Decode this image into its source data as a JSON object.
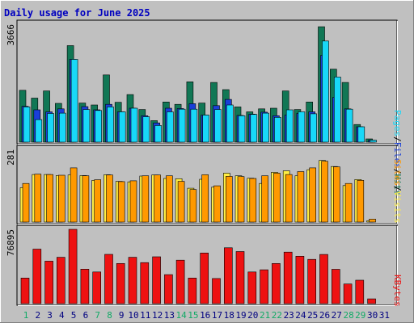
{
  "title": "Daily usage for June 2025",
  "colors": {
    "background": "#c0c0c0",
    "title": "#0000c0",
    "hits": "#117755",
    "files": "#1a3fd8",
    "pages": "#18d8f8",
    "visits": "#ffee44",
    "sites": "#ff9900",
    "kbytes": "#ee1111",
    "weekend_label": "#11aa66",
    "weekday_label": "#000080"
  },
  "chart_data": [
    {
      "type": "bar",
      "title": "Daily usage for June 2025",
      "panel": "hits-files-pages",
      "scale_label": "3666",
      "right_labels": [
        "Pages",
        "Files",
        "Hits"
      ],
      "categories": [
        "1",
        "2",
        "3",
        "4",
        "5",
        "6",
        "7",
        "8",
        "9",
        "10",
        "11",
        "12",
        "13",
        "14",
        "15",
        "16",
        "17",
        "18",
        "19",
        "20",
        "21",
        "22",
        "23",
        "24",
        "25",
        "26",
        "27",
        "28",
        "29",
        "30",
        "31"
      ],
      "ymax": 3666,
      "series": [
        {
          "name": "Hits",
          "values": [
            1590,
            1350,
            1570,
            1190,
            2960,
            1200,
            1140,
            2060,
            1220,
            1460,
            1000,
            660,
            1230,
            1160,
            1850,
            1200,
            1830,
            1610,
            1080,
            930,
            1020,
            1040,
            1570,
            1000,
            1230,
            3540,
            2240,
            1830,
            540,
            100,
            0
          ]
        },
        {
          "name": "Files",
          "values": [
            1100,
            990,
            930,
            1020,
            2540,
            1090,
            990,
            1160,
            930,
            1040,
            810,
            590,
            1040,
            1030,
            1180,
            830,
            1120,
            1310,
            820,
            860,
            920,
            810,
            830,
            880,
            930,
            2660,
            1370,
            1020,
            470,
            60,
            0
          ]
        },
        {
          "name": "Pages",
          "values": [
            1080,
            690,
            880,
            890,
            2540,
            1000,
            970,
            1080,
            930,
            1040,
            780,
            510,
            930,
            1010,
            1010,
            830,
            1000,
            1140,
            810,
            850,
            890,
            760,
            990,
            930,
            870,
            3100,
            2000,
            1010,
            470,
            60,
            0
          ]
        }
      ]
    },
    {
      "type": "bar",
      "panel": "visits-sites",
      "scale_label": "281",
      "right_labels": [
        "Sites",
        "Visits"
      ],
      "categories": [
        "1",
        "2",
        "3",
        "4",
        "5",
        "6",
        "7",
        "8",
        "9",
        "10",
        "11",
        "12",
        "13",
        "14",
        "15",
        "16",
        "17",
        "18",
        "19",
        "20",
        "21",
        "22",
        "23",
        "24",
        "25",
        "26",
        "27",
        "28",
        "29",
        "30",
        "31"
      ],
      "ymax": 281,
      "series": [
        {
          "name": "Visits",
          "values": [
            130,
            180,
            180,
            176,
            178,
            176,
            158,
            179,
            154,
            152,
            174,
            178,
            165,
            164,
            128,
            162,
            132,
            185,
            175,
            166,
            146,
            188,
            194,
            175,
            198,
            233,
            210,
            138,
            161,
            5,
            0
          ]
        },
        {
          "name": "Sites",
          "values": [
            146,
            181,
            180,
            177,
            205,
            175,
            160,
            178,
            153,
            156,
            175,
            178,
            175,
            154,
            123,
            179,
            137,
            173,
            172,
            165,
            175,
            185,
            180,
            191,
            205,
            230,
            209,
            146,
            158,
            11,
            0
          ]
        }
      ]
    },
    {
      "type": "bar",
      "panel": "kbytes",
      "scale_label": "76895",
      "right_labels": [
        "KBytes"
      ],
      "categories": [
        "1",
        "2",
        "3",
        "4",
        "5",
        "6",
        "7",
        "8",
        "9",
        "10",
        "11",
        "12",
        "13",
        "14",
        "15",
        "16",
        "17",
        "18",
        "19",
        "20",
        "21",
        "22",
        "23",
        "24",
        "25",
        "26",
        "27",
        "28",
        "29",
        "30",
        "31"
      ],
      "ymax": 76895,
      "series": [
        {
          "name": "KBytes",
          "values": [
            26500,
            56400,
            44000,
            48000,
            76895,
            35700,
            32800,
            51000,
            41500,
            48000,
            42500,
            48500,
            30000,
            45000,
            26500,
            52400,
            26000,
            57800,
            53900,
            32800,
            35000,
            41500,
            53300,
            49100,
            45800,
            50900,
            35500,
            20300,
            24200,
            4900,
            0
          ]
        }
      ]
    }
  ]
}
